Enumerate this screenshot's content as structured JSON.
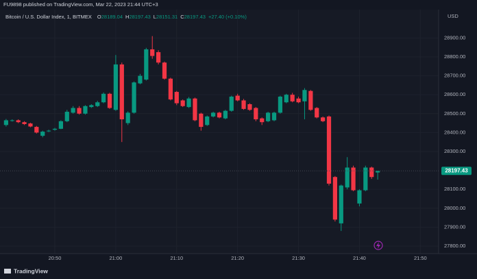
{
  "header": "FU9898 published on TradingView.com, Mar 22, 2023 21:44 UTC+3",
  "footer_brand": "TradingView",
  "chart_data": {
    "type": "candlestick",
    "title": "Bitcoin / U.S. Dollar Index, 1, BITMEX",
    "legend_keys": [
      "O",
      "H",
      "L",
      "C"
    ],
    "change": "+27.40 (+0.10%)",
    "currency": "USD",
    "x": [
      "20:42",
      "20:43",
      "20:44",
      "20:45",
      "20:46",
      "20:47",
      "20:48",
      "20:49",
      "20:50",
      "20:51",
      "20:52",
      "20:53",
      "20:54",
      "20:55",
      "20:56",
      "20:57",
      "20:58",
      "20:59",
      "21:00",
      "21:01",
      "21:02",
      "21:03",
      "21:04",
      "21:05",
      "21:06",
      "21:07",
      "21:08",
      "21:09",
      "21:10",
      "21:11",
      "21:12",
      "21:13",
      "21:14",
      "21:15",
      "21:16",
      "21:17",
      "21:18",
      "21:19",
      "21:20",
      "21:21",
      "21:22",
      "21:23",
      "21:24",
      "21:25",
      "21:26",
      "21:27",
      "21:28",
      "21:29",
      "21:30",
      "21:31",
      "21:32",
      "21:33",
      "21:34",
      "21:35",
      "21:36",
      "21:37",
      "21:38",
      "21:39",
      "21:40",
      "21:41",
      "21:42",
      "21:43"
    ],
    "open": [
      28440,
      28462,
      28465,
      28455,
      28448,
      28430,
      28383,
      28408,
      28415,
      28420,
      28460,
      28505,
      28530,
      28500,
      28535,
      28540,
      28560,
      28605,
      28520,
      28760,
      28450,
      28505,
      28660,
      28680,
      28840,
      28825,
      28770,
      28685,
      28615,
      28570,
      28535,
      28580,
      28500,
      28440,
      28485,
      28505,
      28475,
      28515,
      28595,
      28570,
      28550,
      28530,
      28475,
      28460,
      28465,
      28505,
      28560,
      28600,
      28580,
      28565,
      28620,
      28530,
      28480,
      28485,
      28165,
      27920,
      28110,
      28215,
      28025,
      28095,
      28215,
      28189.04
    ],
    "high": [
      28472,
      28470,
      28470,
      28460,
      28452,
      28435,
      28410,
      28415,
      28425,
      28465,
      28520,
      28540,
      28540,
      28545,
      28550,
      28568,
      28612,
      28610,
      28810,
      28770,
      28512,
      28670,
      28710,
      28848,
      28910,
      28835,
      28775,
      28690,
      28620,
      28575,
      28588,
      28585,
      28505,
      28490,
      28510,
      28510,
      28520,
      28595,
      28605,
      28578,
      28555,
      28535,
      28480,
      28510,
      28510,
      28595,
      28605,
      28610,
      28590,
      28635,
      28625,
      28535,
      28485,
      28490,
      28170,
      28125,
      28270,
      28225,
      28100,
      28225,
      28220,
      28197.43
    ],
    "low": [
      28432,
      28458,
      28450,
      28440,
      28428,
      28395,
      28375,
      28403,
      28410,
      28418,
      28455,
      28500,
      28495,
      28495,
      28530,
      28535,
      28555,
      28525,
      28515,
      28350,
      28440,
      28500,
      28655,
      28675,
      28790,
      28760,
      28680,
      28570,
      28545,
      28535,
      28530,
      28460,
      28410,
      28435,
      28480,
      28475,
      28470,
      28510,
      28565,
      28520,
      28515,
      28460,
      28440,
      28455,
      28460,
      28500,
      28555,
      28560,
      28555,
      28470,
      28515,
      28475,
      28455,
      28120,
      27930,
      27880,
      28100,
      28090,
      28010,
      28090,
      28155,
      28151.31
    ],
    "close": [
      28465,
      28465,
      28455,
      28445,
      28432,
      28400,
      28405,
      28410,
      28420,
      28460,
      28510,
      28530,
      28500,
      28540,
      28545,
      28560,
      28605,
      28530,
      28760,
      28470,
      28505,
      28665,
      28700,
      28840,
      28805,
      28770,
      28685,
      28575,
      28555,
      28540,
      28580,
      28465,
      28430,
      28485,
      28505,
      28480,
      28515,
      28590,
      28570,
      28525,
      28520,
      28470,
      28455,
      28505,
      28505,
      28590,
      28600,
      28565,
      28560,
      28625,
      28520,
      28480,
      28460,
      28130,
      27940,
      28120,
      28215,
      28095,
      28095,
      28215,
      28165,
      28197.43
    ],
    "up_color": "#089981",
    "down_color": "#f23645",
    "xlim": [
      "20:41",
      "21:53"
    ],
    "xticks": [
      "20:50",
      "21:00",
      "21:10",
      "21:20",
      "21:30",
      "21:40",
      "21:50"
    ],
    "ylim": [
      27760,
      29050
    ],
    "yticks": [
      {
        "value": 27800,
        "label": "27800.00"
      },
      {
        "value": 27900,
        "label": "27900.00"
      },
      {
        "value": 28000,
        "label": "28000.00"
      },
      {
        "value": 28100,
        "label": "28100.00"
      },
      {
        "value": 28300,
        "label": "28300.00"
      },
      {
        "value": 28400,
        "label": "28400.00"
      },
      {
        "value": 28500,
        "label": "28500.00"
      },
      {
        "value": 28600,
        "label": "28600.00"
      },
      {
        "value": 28700,
        "label": "28700.00"
      },
      {
        "value": 28800,
        "label": "28800.00"
      },
      {
        "value": 28900,
        "label": "28900.00"
      }
    ],
    "grid": true
  }
}
